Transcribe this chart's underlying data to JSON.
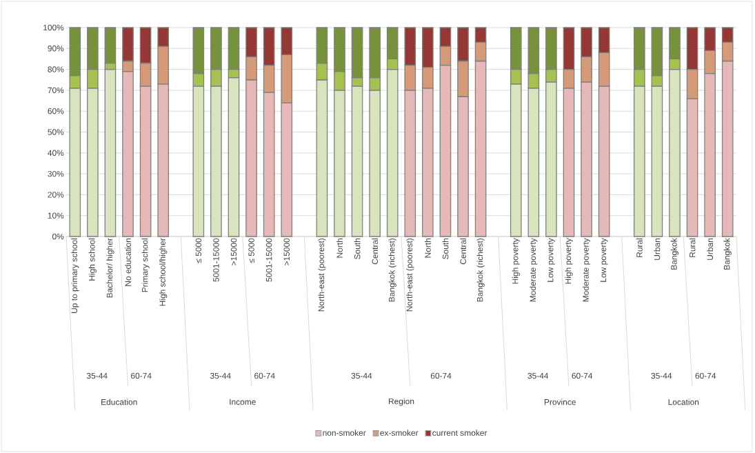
{
  "chart_data": {
    "type": "bar",
    "stacked": true,
    "legend": "bottom",
    "grid": "y",
    "categories": [
      "Up to primary school",
      "High school",
      "Bachelor/ higher",
      "No education",
      "Primary school",
      "High school/higher",
      null,
      "≤ 5000",
      "5001-15000",
      ">15000",
      "≤ 5000",
      "5001-15000",
      ">15000",
      null,
      "North-east (poorest)",
      "North",
      "South",
      "Central",
      "Bangkok (richest)",
      "North-east (poorest)",
      "North",
      "South",
      "Central",
      "Bangkok (richest)",
      null,
      "High poverty",
      "Moderate poverty",
      "Low poverty",
      "High poverty",
      "Moderate poverty",
      "Low poverty",
      null,
      "Rural",
      "Urban",
      "Bangkok",
      "Rural",
      "Urban",
      "Bangkok"
    ],
    "series": [
      {
        "name": "non-smoker",
        "color": "#e6b9b8",
        "values": [
          71,
          71,
          80,
          79,
          72,
          73,
          null,
          72,
          72,
          76,
          75,
          69,
          64,
          null,
          75,
          70,
          72,
          70,
          80,
          70,
          71,
          82,
          67,
          84,
          null,
          73,
          71,
          74,
          71,
          74,
          72,
          null,
          72,
          72,
          80,
          66,
          78,
          84
        ],
        "colors": [
          "#d7e4bd",
          "#d7e4bd",
          "#d7e4bd",
          "#e6b9b8",
          "#e6b9b8",
          "#e6b9b8",
          null,
          "#d7e4bd",
          "#d7e4bd",
          "#d7e4bd",
          "#e6b9b8",
          "#e6b9b8",
          "#e6b9b8",
          null,
          "#d7e4bd",
          "#d7e4bd",
          "#d7e4bd",
          "#d7e4bd",
          "#d7e4bd",
          "#e6b9b8",
          "#e6b9b8",
          "#e6b9b8",
          "#e6b9b8",
          "#e6b9b8",
          null,
          "#d7e4bd",
          "#d7e4bd",
          "#d7e4bd",
          "#e6b9b8",
          "#e6b9b8",
          "#e6b9b8",
          null,
          "#d7e4bd",
          "#d7e4bd",
          "#d7e4bd",
          "#e6b9b8",
          "#e6b9b8",
          "#e6b9b8"
        ]
      },
      {
        "name": "ex-smoker",
        "color": "#d59a78",
        "values": [
          6,
          9,
          3,
          5,
          11,
          18,
          null,
          6,
          8,
          4,
          11,
          13,
          23,
          null,
          8,
          9,
          4,
          6,
          5,
          12,
          10,
          9,
          17,
          9,
          null,
          7,
          7,
          6,
          9,
          12,
          16,
          null,
          8,
          5,
          5,
          14,
          11,
          9
        ],
        "colors": [
          "#a6c14f",
          "#a6c14f",
          "#a6c14f",
          "#d59a78",
          "#d59a78",
          "#d59a78",
          null,
          "#a6c14f",
          "#a6c14f",
          "#a6c14f",
          "#d59a78",
          "#d59a78",
          "#d59a78",
          null,
          "#a6c14f",
          "#a6c14f",
          "#a6c14f",
          "#a6c14f",
          "#a6c14f",
          "#d59a78",
          "#d59a78",
          "#d59a78",
          "#d59a78",
          "#d59a78",
          null,
          "#a6c14f",
          "#a6c14f",
          "#a6c14f",
          "#d59a78",
          "#d59a78",
          "#d59a78",
          null,
          "#a6c14f",
          "#a6c14f",
          "#a6c14f",
          "#d59a78",
          "#d59a78",
          "#d59a78"
        ]
      },
      {
        "name": "current smoker",
        "color": "#953735",
        "values": [
          23,
          20,
          17,
          16,
          17,
          9,
          null,
          22,
          20,
          20,
          14,
          18,
          13,
          null,
          17,
          21,
          24,
          24,
          15,
          18,
          19,
          9,
          16,
          7,
          null,
          20,
          22,
          20,
          20,
          14,
          12,
          null,
          20,
          23,
          15,
          20,
          11,
          7
        ],
        "colors": [
          "#76923c",
          "#76923c",
          "#76923c",
          "#953735",
          "#953735",
          "#953735",
          null,
          "#76923c",
          "#76923c",
          "#76923c",
          "#953735",
          "#953735",
          "#953735",
          null,
          "#76923c",
          "#76923c",
          "#76923c",
          "#76923c",
          "#76923c",
          "#953735",
          "#953735",
          "#953735",
          "#953735",
          "#953735",
          null,
          "#76923c",
          "#76923c",
          "#76923c",
          "#953735",
          "#953735",
          "#953735",
          null,
          "#76923c",
          "#76923c",
          "#76923c",
          "#953735",
          "#953735",
          "#953735"
        ]
      }
    ],
    "ylim": [
      0,
      100
    ],
    "yticks": [
      {
        "value": 0,
        "label": "0%"
      },
      {
        "value": 10,
        "label": "10%"
      },
      {
        "value": 20,
        "label": "20%"
      },
      {
        "value": 30,
        "label": "30%"
      },
      {
        "value": 40,
        "label": "40%"
      },
      {
        "value": 50,
        "label": "50%"
      },
      {
        "value": 60,
        "label": "60%"
      },
      {
        "value": 70,
        "label": "70%"
      },
      {
        "value": 80,
        "label": "80%"
      },
      {
        "value": 90,
        "label": "90%"
      },
      {
        "value": 100,
        "label": "100%"
      }
    ],
    "annotations": [
      "35-44",
      "60-74",
      "Education",
      "35-44",
      "60-74",
      "Income",
      "35-44",
      "60-74",
      "Region",
      "35-44",
      "60-74",
      "Province",
      "35-44",
      "60-74",
      "Location"
    ]
  }
}
